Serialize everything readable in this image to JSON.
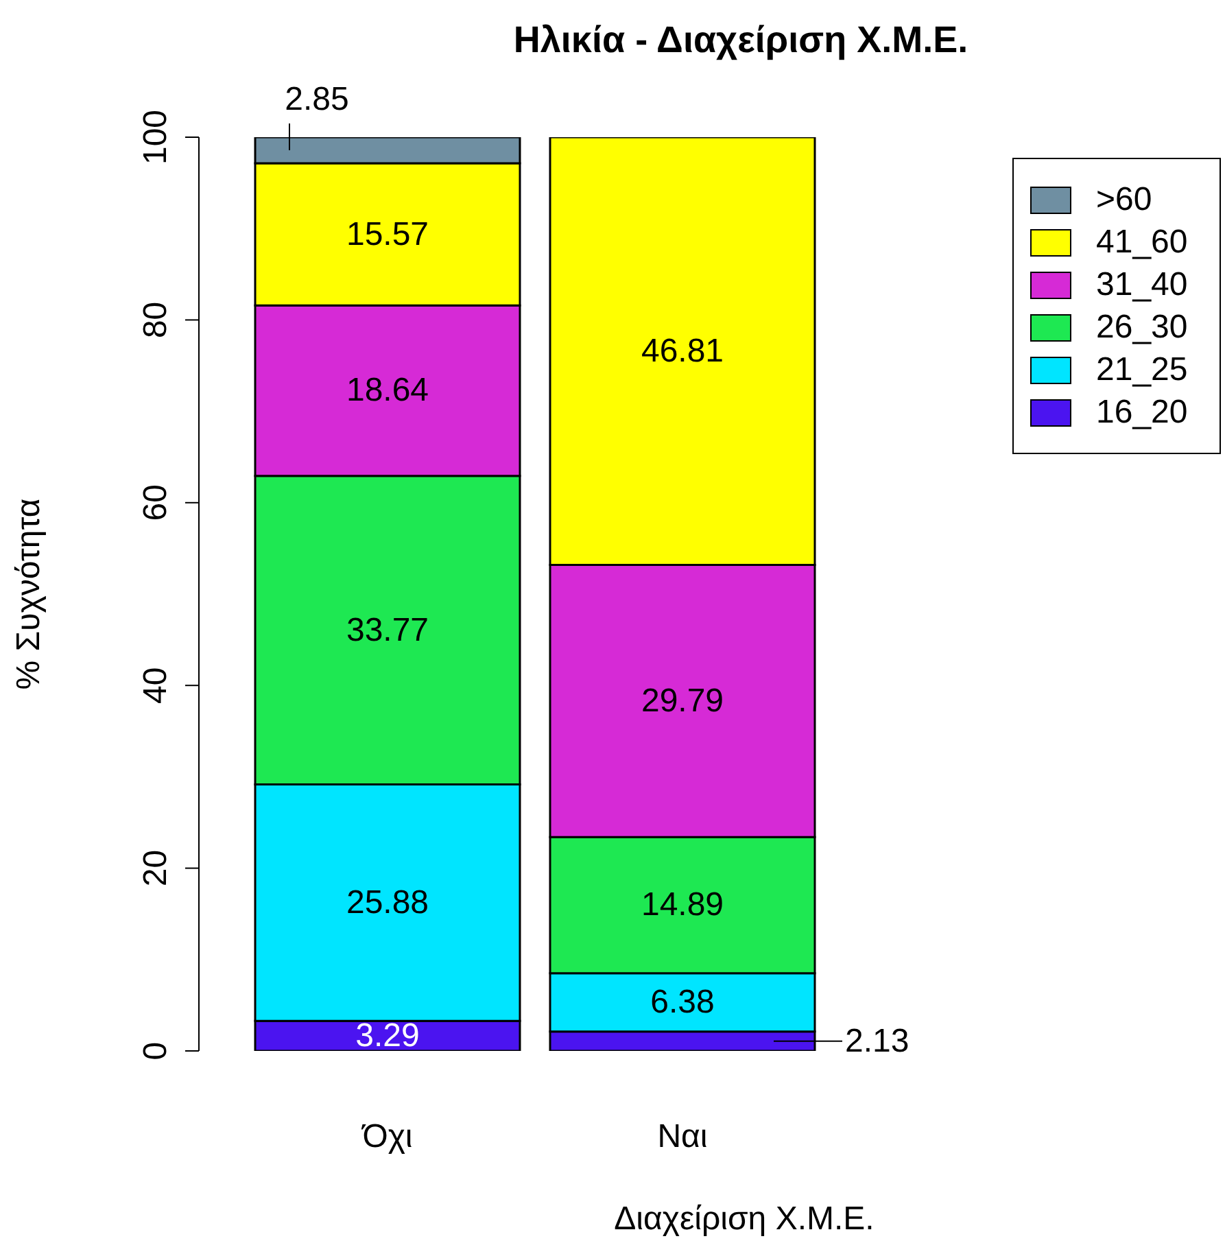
{
  "chart_data": {
    "type": "bar",
    "title": "Ηλικία - Διαχείριση Χ.Μ.Ε.",
    "xlabel": "Διαχείριση Χ.Μ.Ε.",
    "ylabel": "% Συχνότητα",
    "categories": [
      "Όχι",
      "Ναι"
    ],
    "stacked": true,
    "ylim": [
      0,
      100
    ],
    "yticks": [
      0,
      20,
      40,
      60,
      80,
      100
    ],
    "grid": false,
    "legend": "top right",
    "series": [
      {
        "name": "16_20",
        "color": "#4b14f0",
        "values": [
          3.29,
          2.13
        ],
        "value_labels": [
          "3.29",
          "2.13"
        ]
      },
      {
        "name": "21_25",
        "color": "#00e5ff",
        "values": [
          25.88,
          6.38
        ],
        "value_labels": [
          "25.88",
          "6.38"
        ]
      },
      {
        "name": "26_30",
        "color": "#1ee852",
        "values": [
          33.77,
          14.89
        ],
        "value_labels": [
          "33.77",
          "14.89"
        ]
      },
      {
        "name": "31_40",
        "color": "#d62ad6",
        "values": [
          18.64,
          29.79
        ],
        "value_labels": [
          "18.64",
          "29.79"
        ]
      },
      {
        "name": "41_60",
        "color": "#ffff00",
        "values": [
          15.57,
          46.81
        ],
        "value_labels": [
          "15.57",
          "46.81"
        ]
      },
      {
        "name": ">60",
        "color": "#6f8fa2",
        "values": [
          2.85,
          0
        ],
        "value_labels": [
          "2.85",
          null
        ]
      }
    ]
  }
}
